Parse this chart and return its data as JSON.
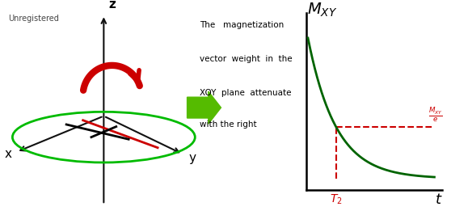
{
  "background_color": "#ffffff",
  "unregistered_text": "Unregistered",
  "description_lines": [
    "The   magnetization",
    "vector  weight  in  the",
    "XOY  plane  attenuate",
    "with the right"
  ],
  "mxy_label": "$M_{XY}$",
  "t_label": "t",
  "t2_label": "$T_2$",
  "mxy_e_label": "$\\frac{M_{XY}}{e}$",
  "z_label": "z",
  "x_label": "x",
  "y_label": "y",
  "decay_color": "#006400",
  "dashed_color": "#cc0000",
  "axis_color": "#111111",
  "ellipse_color": "#00bb00",
  "red_arrow_color": "#cc0000",
  "figsize": [
    5.58,
    2.61
  ],
  "dpi": 100
}
